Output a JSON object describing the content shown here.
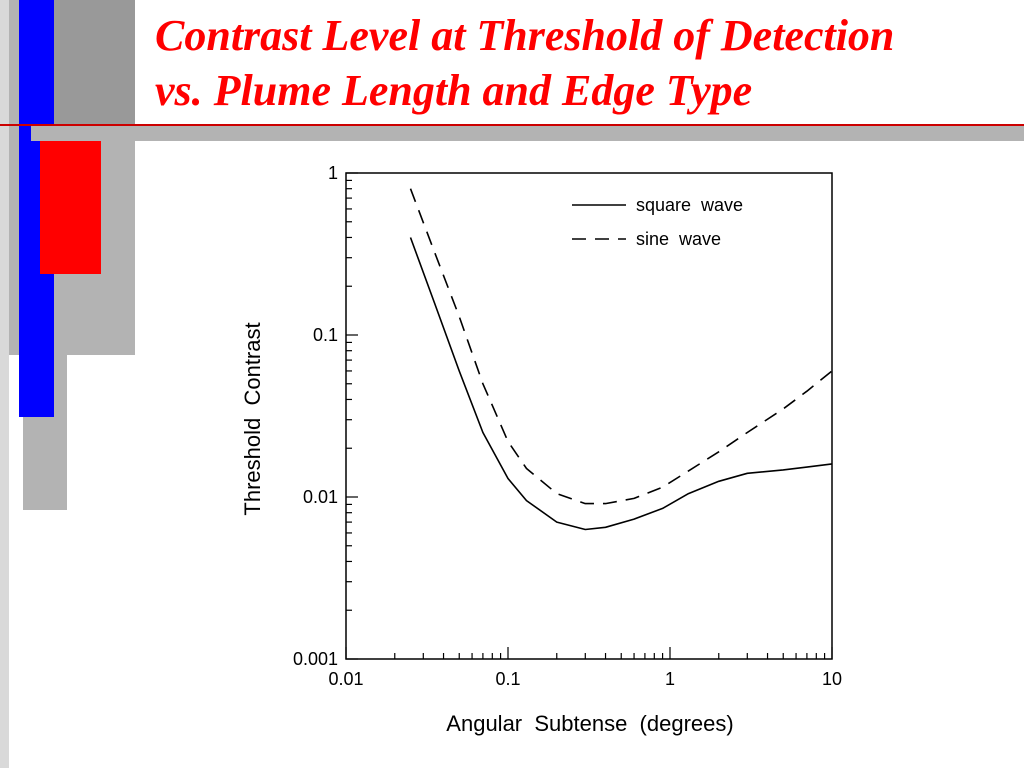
{
  "slide": {
    "title_line1": "Contrast Level at Threshold of Detection",
    "title_line2": "vs. Plume Length and Edge Type",
    "colors": {
      "title": "#ff0000",
      "bar_blue": "#0000ff",
      "bar_red": "#ff0000",
      "bar_gray": "#b3b3b3",
      "bar_dark_gray": "#999999"
    }
  },
  "chart_data": {
    "type": "line",
    "xscale": "log",
    "yscale": "log",
    "xlim": [
      0.01,
      10
    ],
    "ylim": [
      0.001,
      1
    ],
    "xlabel": "Angular  Subtense  (degrees)",
    "ylabel": "Threshold  Contrast",
    "x_ticks": [
      "0.01",
      "0.1",
      "1",
      "10"
    ],
    "y_ticks": [
      "1",
      "0.1",
      "0.01",
      "0.001"
    ],
    "legend_position": "top-right",
    "series": [
      {
        "name": "square  wave",
        "style": "solid",
        "x": [
          0.025,
          0.035,
          0.05,
          0.07,
          0.1,
          0.13,
          0.2,
          0.3,
          0.4,
          0.6,
          0.9,
          1.3,
          2,
          3,
          5,
          7,
          10
        ],
        "y": [
          0.4,
          0.16,
          0.06,
          0.025,
          0.013,
          0.0095,
          0.007,
          0.0063,
          0.0065,
          0.0073,
          0.0085,
          0.0105,
          0.0125,
          0.014,
          0.0147,
          0.0153,
          0.016
        ]
      },
      {
        "name": "sine  wave",
        "style": "dashed",
        "x": [
          0.025,
          0.035,
          0.05,
          0.07,
          0.1,
          0.13,
          0.2,
          0.3,
          0.4,
          0.6,
          0.9,
          1.3,
          2,
          3,
          5,
          7,
          10
        ],
        "y": [
          0.8,
          0.33,
          0.13,
          0.05,
          0.022,
          0.015,
          0.0105,
          0.0091,
          0.0091,
          0.0098,
          0.0115,
          0.0145,
          0.019,
          0.025,
          0.035,
          0.045,
          0.06
        ]
      }
    ]
  }
}
